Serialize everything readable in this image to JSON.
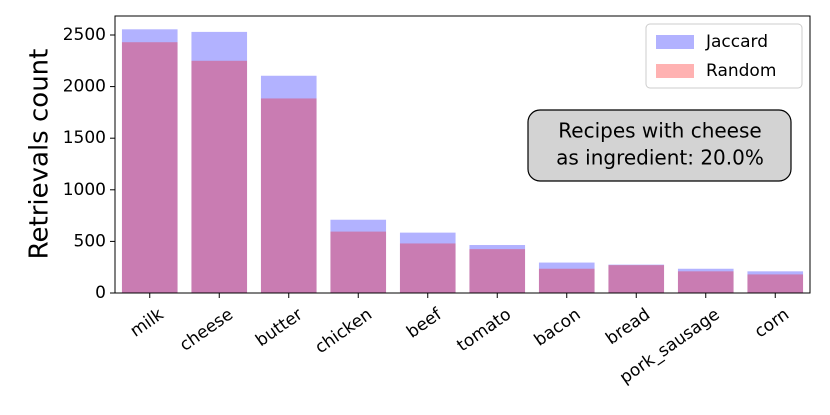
{
  "chart_data": {
    "type": "bar",
    "y_label": "Retrievals count",
    "categories": [
      "milk",
      "cheese",
      "butter",
      "chicken",
      "beef",
      "tomato",
      "bacon",
      "bread",
      "pork_sausage",
      "corn"
    ],
    "series": [
      {
        "name": "Jaccard",
        "color": "#0000ff",
        "values": [
          2555,
          2530,
          2105,
          710,
          585,
          465,
          295,
          275,
          235,
          210
        ]
      },
      {
        "name": "Random",
        "color": "#ff0000",
        "values": [
          2430,
          2250,
          1885,
          595,
          480,
          425,
          235,
          270,
          210,
          180
        ]
      }
    ],
    "ylim": [
      0,
      2684
    ],
    "yticks": [
      0,
      500,
      1000,
      1500,
      2000,
      2500
    ],
    "legend": "upper right",
    "annotation": [
      "Recipes with cheese",
      "as ingredient: 20.0%"
    ]
  }
}
